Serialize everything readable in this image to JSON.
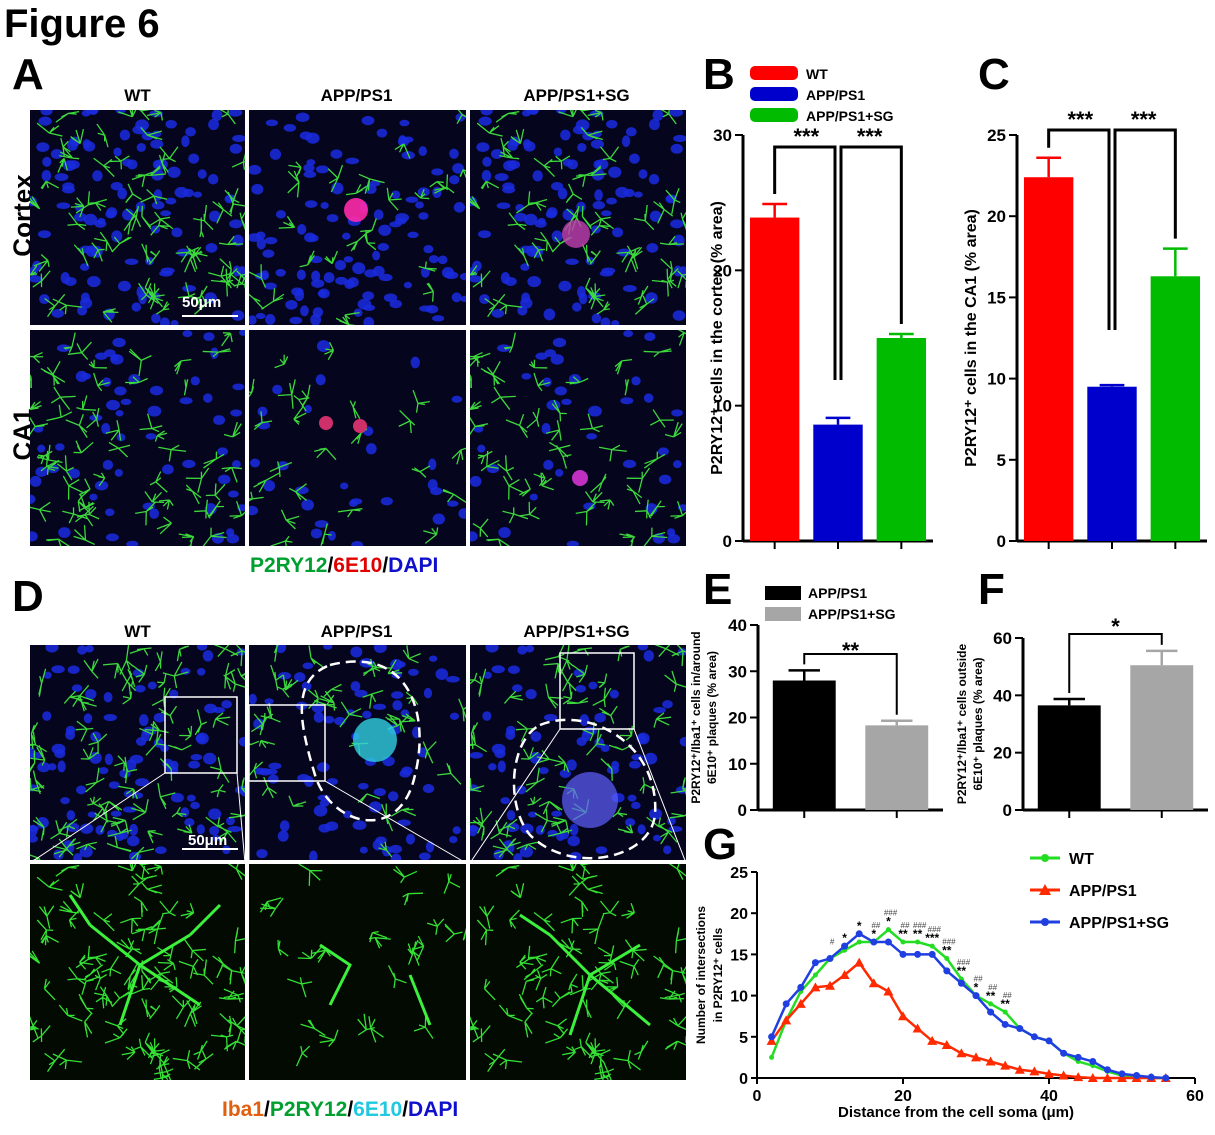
{
  "figure": {
    "title": "Figure 6"
  },
  "panels": {
    "A": {
      "letter": "A",
      "columns": [
        "WT",
        "APP/PS1",
        "APP/PS1+SG"
      ],
      "rows": [
        "Cortex",
        "CA1"
      ],
      "scalebar": "50μm",
      "stain": {
        "p1": "P2RY12",
        "s1": "/",
        "p2": "6E10",
        "s2": "/",
        "p3": "DAPI"
      }
    },
    "B": {
      "letter": "B"
    },
    "C": {
      "letter": "C"
    },
    "D": {
      "letter": "D",
      "columns": [
        "WT",
        "APP/PS1",
        "APP/PS1+SG"
      ],
      "scalebar": "50μm",
      "stain": {
        "p1": "Iba1",
        "s1": "/",
        "p2": "P2RY12",
        "s2": "/",
        "p3": "6E10",
        "s3": "/",
        "p4": "DAPI"
      }
    },
    "E": {
      "letter": "E"
    },
    "F": {
      "letter": "F"
    },
    "G": {
      "letter": "G"
    }
  },
  "colors": {
    "wt": "#ff0000",
    "app": "#0000cc",
    "sg": "#00bb00",
    "black": "#000000",
    "grey": "#a6a6a6",
    "g_wt": "#22dd22",
    "g_app": "#ff2a00",
    "g_sg": "#1f3fe0"
  },
  "chart_data": [
    {
      "id": "B",
      "type": "bar",
      "ylabel": "P2RY12⁺ cells in the cortex (% area)",
      "categories": [
        "WT",
        "APP/PS1",
        "APP/PS1+SG"
      ],
      "values": [
        23.9,
        8.6,
        15.0
      ],
      "errors": [
        1.0,
        0.5,
        0.3
      ],
      "ylim": [
        0,
        30
      ],
      "yticks": [
        0,
        10,
        20,
        30
      ],
      "legend": [
        "WT",
        "APP/PS1",
        "APP/PS1+SG"
      ],
      "sig": [
        "***",
        "***"
      ]
    },
    {
      "id": "C",
      "type": "bar",
      "ylabel": "P2RY12⁺ cells in the CA1 (% area)",
      "categories": [
        "WT",
        "APP/PS1",
        "APP/PS1+SG"
      ],
      "values": [
        22.4,
        9.5,
        16.3
      ],
      "errors": [
        1.2,
        0.1,
        1.7
      ],
      "ylim": [
        0,
        25
      ],
      "yticks": [
        0,
        5,
        10,
        15,
        20,
        25
      ],
      "sig": [
        "***",
        "***"
      ]
    },
    {
      "id": "E",
      "type": "bar",
      "ylabel": [
        "P2RY12⁺/Iba1⁺ cells in/around",
        "6E10⁺ plaques (% area)"
      ],
      "categories": [
        "APP/PS1",
        "APP/PS1+SG"
      ],
      "values": [
        28.0,
        18.3
      ],
      "errors": [
        2.2,
        1.0
      ],
      "ylim": [
        0,
        40
      ],
      "yticks": [
        0,
        10,
        20,
        30,
        40
      ],
      "legend": [
        "APP/PS1",
        "APP/PS1+SG"
      ],
      "sig": [
        "**"
      ]
    },
    {
      "id": "F",
      "type": "bar",
      "ylabel": [
        "P2RY12⁺/Iba1⁺ cells outside",
        "6E10⁺ plaques (% area)"
      ],
      "categories": [
        "APP/PS1",
        "APP/PS1+SG"
      ],
      "values": [
        36.5,
        50.5
      ],
      "errors": [
        2.2,
        5.0
      ],
      "ylim": [
        0,
        60
      ],
      "yticks": [
        0,
        20,
        40,
        60
      ],
      "sig": [
        "*"
      ]
    },
    {
      "id": "G",
      "type": "line",
      "xlabel": "Distance from the cell soma (μm)",
      "ylabel": [
        "Number of intersections",
        "in P2RY12⁺ cells"
      ],
      "xlim": [
        0,
        60
      ],
      "ylim": [
        0,
        25
      ],
      "xticks": [
        0,
        20,
        40,
        60
      ],
      "yticks": [
        0,
        5,
        10,
        15,
        20,
        25
      ],
      "x": [
        2,
        4,
        6,
        8,
        10,
        12,
        14,
        16,
        18,
        20,
        22,
        24,
        26,
        28,
        30,
        32,
        34,
        36,
        38,
        40,
        42,
        44,
        46,
        48,
        50,
        52,
        54,
        56
      ],
      "series": [
        {
          "name": "WT",
          "values": [
            2.5,
            7.0,
            10.5,
            12.5,
            14.5,
            15.5,
            16.5,
            16.5,
            18.0,
            16.5,
            16.5,
            16.0,
            14.5,
            12.0,
            10.0,
            9.0,
            8.0,
            6.0,
            5.0,
            4.5,
            3.0,
            2.0,
            1.5,
            0.8,
            0.3,
            0.1,
            0.0,
            0.0
          ]
        },
        {
          "name": "APP/PS1",
          "values": [
            4.5,
            7.0,
            9.0,
            11.0,
            11.2,
            12.5,
            14.0,
            11.5,
            10.5,
            7.5,
            6.0,
            4.5,
            4.0,
            3.0,
            2.5,
            2.0,
            1.5,
            1.0,
            0.8,
            0.5,
            0.3,
            0.1,
            0.0,
            0.0,
            0.0,
            0.0,
            0.0,
            0.0
          ]
        },
        {
          "name": "APP/PS1+SG",
          "values": [
            5.0,
            9.0,
            11.0,
            14.0,
            14.5,
            16.0,
            17.5,
            16.5,
            16.5,
            15.0,
            15.0,
            15.0,
            13.0,
            11.5,
            10.0,
            8.0,
            6.5,
            6.0,
            5.0,
            4.5,
            3.0,
            2.5,
            2.0,
            1.0,
            0.5,
            0.3,
            0.1,
            0.0
          ]
        }
      ],
      "legend": [
        "WT",
        "APP/PS1",
        "APP/PS1+SG"
      ],
      "stars": [
        {
          "x": 12,
          "t": "*"
        },
        {
          "x": 14,
          "t": "*"
        },
        {
          "x": 16,
          "t": "*"
        },
        {
          "x": 18,
          "t": "*"
        },
        {
          "x": 20,
          "t": "**"
        },
        {
          "x": 22,
          "t": "**"
        },
        {
          "x": 24,
          "t": "***"
        },
        {
          "x": 26,
          "t": "**"
        },
        {
          "x": 28,
          "t": "**"
        },
        {
          "x": 30,
          "t": "*"
        },
        {
          "x": 32,
          "t": "**"
        },
        {
          "x": 34,
          "t": "**"
        }
      ],
      "hashes": [
        {
          "x": 10,
          "t": "#"
        },
        {
          "x": 16,
          "t": "##"
        },
        {
          "x": 18,
          "t": "###"
        },
        {
          "x": 20,
          "t": "##"
        },
        {
          "x": 22,
          "t": "###"
        },
        {
          "x": 24,
          "t": "###"
        },
        {
          "x": 26,
          "t": "###"
        },
        {
          "x": 28,
          "t": "###"
        },
        {
          "x": 30,
          "t": "##"
        },
        {
          "x": 32,
          "t": "##"
        },
        {
          "x": 34,
          "t": "##"
        }
      ]
    }
  ]
}
